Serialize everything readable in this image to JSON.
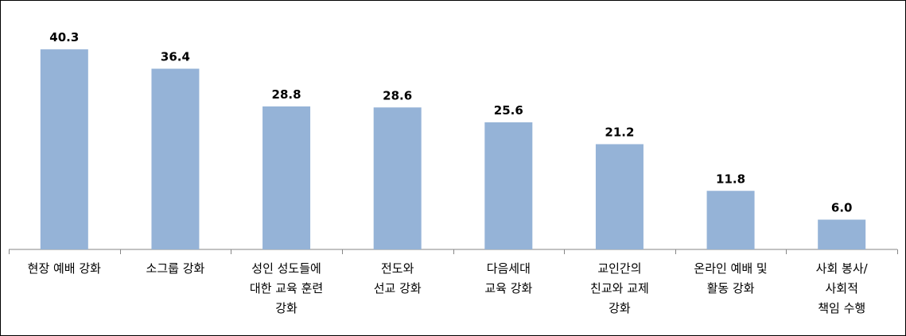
{
  "chart_data": {
    "type": "bar",
    "categories": [
      [
        "현장 예배 강화"
      ],
      [
        "소그룹 강화"
      ],
      [
        "성인 성도들에",
        "대한 교육 훈련",
        "강화"
      ],
      [
        "전도와",
        "선교 강화"
      ],
      [
        "다음세대",
        "교육 강화"
      ],
      [
        "교인간의",
        "친교와 교제",
        "강화"
      ],
      [
        "온라인 예배 및",
        "활동 강화"
      ],
      [
        "사회 봉사/",
        "사회적",
        "책임 수행"
      ]
    ],
    "values": [
      40.3,
      36.4,
      28.8,
      28.6,
      25.6,
      21.2,
      11.8,
      6.0
    ],
    "value_labels": [
      "40.3",
      "36.4",
      "28.8",
      "28.6",
      "25.6",
      "21.2",
      "11.8",
      "6.0"
    ],
    "ylim": [
      0,
      45
    ],
    "grid": false,
    "legend": "none",
    "colors": {
      "bar": "#95b3d7",
      "axis": "#868686"
    }
  }
}
